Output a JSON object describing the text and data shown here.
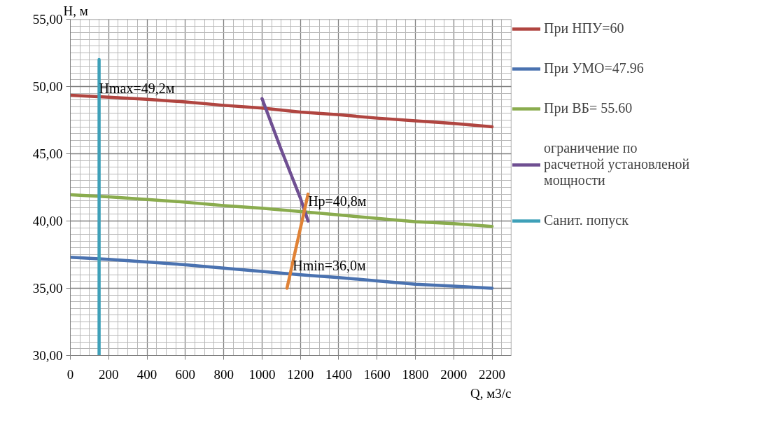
{
  "chart_data": {
    "type": "line",
    "xlabel": "Q, м3/с",
    "ylabel": "H, м",
    "xlim": [
      0,
      2300
    ],
    "xticks": [
      0,
      200,
      400,
      600,
      800,
      1000,
      1200,
      1400,
      1600,
      1800,
      2000,
      2200
    ],
    "ylim": [
      30,
      55
    ],
    "yticks": [
      {
        "value": 30,
        "label": "30,00"
      },
      {
        "value": 35,
        "label": "35,00"
      },
      {
        "value": 40,
        "label": "40,00"
      },
      {
        "value": 45,
        "label": "45,00"
      },
      {
        "value": 50,
        "label": "50,00"
      },
      {
        "value": 55,
        "label": "55,00"
      }
    ],
    "grid": true,
    "legend": "right",
    "marker": "none",
    "line_style": "solid",
    "x": [
      0,
      200,
      400,
      600,
      800,
      1000,
      1200,
      1400,
      1600,
      1800,
      2000,
      2200
    ],
    "series": [
      {
        "name": "При НПУ=60",
        "color": "#b04540",
        "values": [
          49.35,
          49.2,
          49.05,
          48.85,
          48.6,
          48.4,
          48.1,
          47.9,
          47.65,
          47.45,
          47.25,
          47.0
        ]
      },
      {
        "name": "При УМО=47.96",
        "color": "#4a72b0",
        "values": [
          37.3,
          37.15,
          36.95,
          36.75,
          36.5,
          36.25,
          36.0,
          35.8,
          35.55,
          35.3,
          35.15,
          35.0
        ]
      },
      {
        "name": "При ВБ= 55.60",
        "color": "#8aac4e",
        "values": [
          41.95,
          41.8,
          41.6,
          41.4,
          41.15,
          40.95,
          40.7,
          40.45,
          40.2,
          39.95,
          39.8,
          39.6
        ]
      },
      {
        "name": "ограничение по расчетной установленой мощности",
        "color": "#6f4f92",
        "x": [
          1000,
          1100,
          1200,
          1240
        ],
        "values": [
          49.1,
          45.3,
          41.7,
          40.0
        ]
      },
      {
        "name": "Санит. попуск",
        "color": "#3ea0b8",
        "x": [
          150,
          150
        ],
        "values": [
          30,
          52
        ]
      },
      {
        "color": "#e08236",
        "x": [
          1130,
          1240
        ],
        "values": [
          35.0,
          42.0
        ]
      }
    ],
    "annotations": [
      {
        "text": "Hmax=49,2м",
        "x": 150,
        "y": 49.2
      },
      {
        "text": "Нр=40,8м",
        "x": 1240,
        "y": 40.8
      },
      {
        "text": "Hmin=36,0м",
        "x": 1160,
        "y": 36.0
      }
    ]
  }
}
